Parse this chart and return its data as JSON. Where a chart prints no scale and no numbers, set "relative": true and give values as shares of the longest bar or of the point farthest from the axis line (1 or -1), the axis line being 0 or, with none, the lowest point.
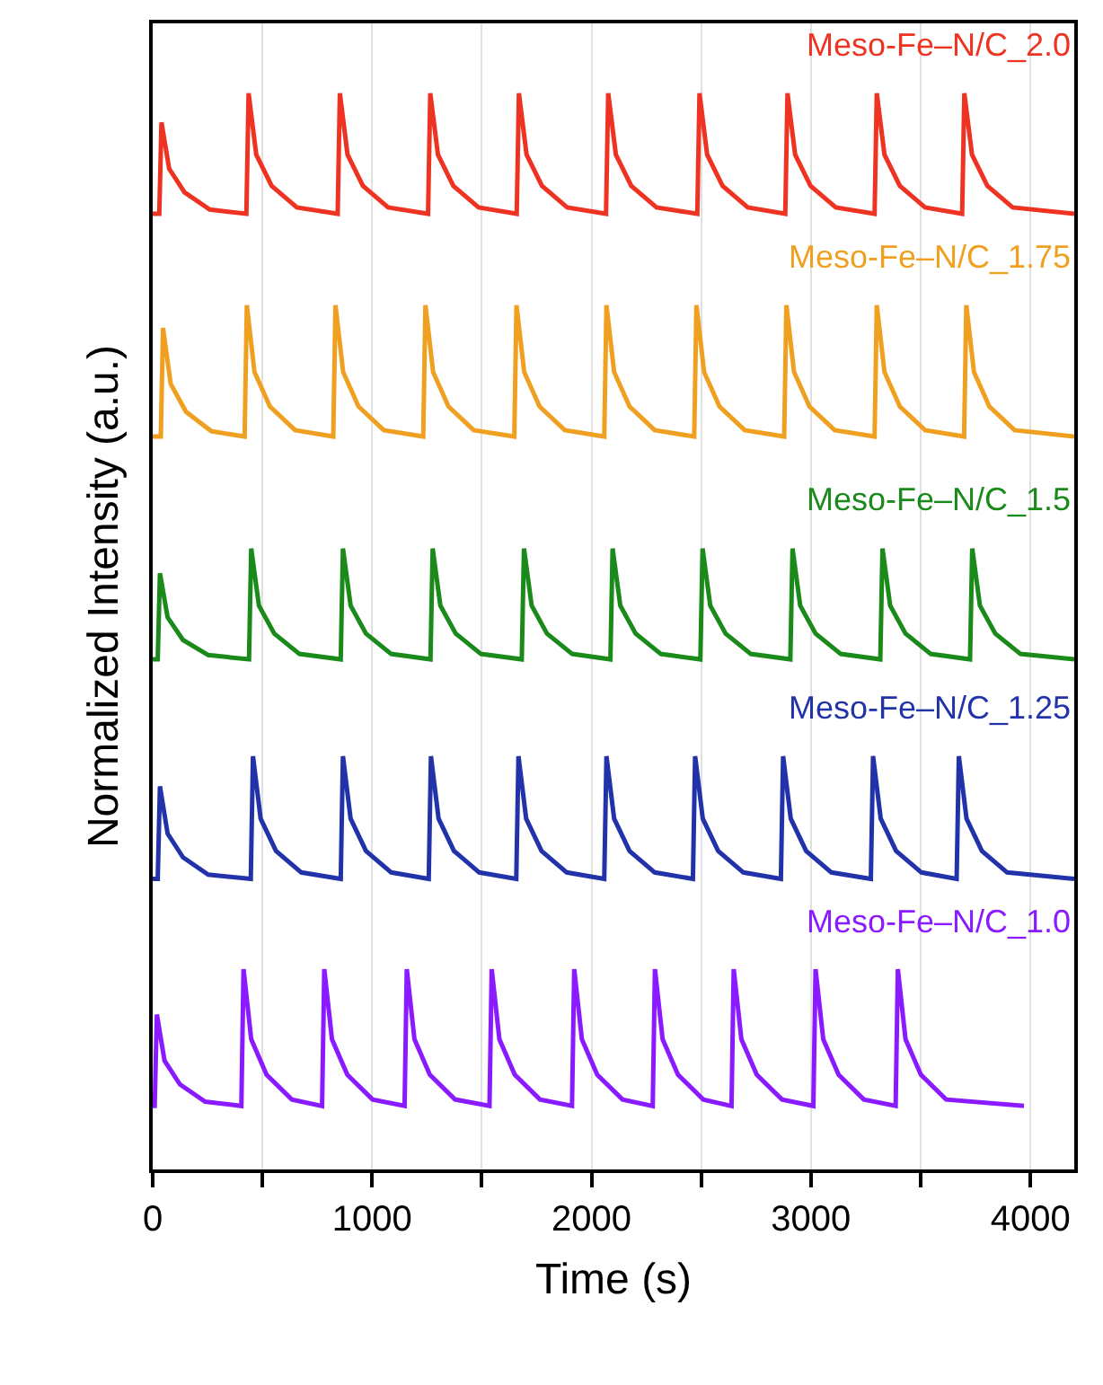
{
  "chart_data": {
    "type": "line",
    "relative": true,
    "xlabel": "Time (s)",
    "ylabel": "Normalized Intensity (a.u.)",
    "xlim": [
      0,
      4200
    ],
    "xticks": [
      0,
      {
        "value": 500,
        "label": null
      },
      1000,
      {
        "value": 1500,
        "label": null
      },
      2000,
      {
        "value": 2500,
        "label": null
      },
      3000,
      {
        "value": 3500,
        "label": null
      },
      4000
    ],
    "tick_labels": "x",
    "grid": "x",
    "legend": false,
    "marker": "none",
    "line_style": "solid",
    "series": [
      {
        "name": "Meso-Fe–N/C_2.0",
        "color": "#ee3322",
        "x": [
          0,
          30,
          40,
          75,
          145,
          260,
          427,
          437,
          472,
          542,
          657,
          843,
          853,
          888,
          958,
          1073,
          1255,
          1265,
          1300,
          1370,
          1485,
          1659,
          1669,
          1704,
          1774,
          1889,
          2066,
          2076,
          2111,
          2181,
          2296,
          2482,
          2492,
          2527,
          2597,
          2712,
          2883,
          2893,
          2928,
          2998,
          3113,
          3290,
          3300,
          3335,
          3405,
          3520,
          3689,
          3699,
          3734,
          3804,
          3919,
          4200
        ],
        "values": [
          0.888,
          0.888,
          0.973,
          0.93,
          0.908,
          0.892,
          0.888,
          1.0,
          0.943,
          0.914,
          0.894,
          0.888,
          1.0,
          0.943,
          0.914,
          0.894,
          0.888,
          1.0,
          0.943,
          0.914,
          0.894,
          0.888,
          1.0,
          0.943,
          0.914,
          0.894,
          0.888,
          1.0,
          0.943,
          0.914,
          0.894,
          0.888,
          1.0,
          0.943,
          0.914,
          0.894,
          0.888,
          1.0,
          0.943,
          0.914,
          0.894,
          0.888,
          1.0,
          0.943,
          0.914,
          0.894,
          0.888,
          1.0,
          0.943,
          0.914,
          0.894,
          0.888
        ]
      },
      {
        "name": "Meso-Fe–N/C_1.75",
        "color": "#f0a020",
        "x": [
          0,
          37,
          47,
          82,
          152,
          267,
          419,
          429,
          464,
          534,
          649,
          823,
          833,
          868,
          938,
          1053,
          1233,
          1243,
          1278,
          1348,
          1463,
          1648,
          1658,
          1693,
          1763,
          1878,
          2058,
          2068,
          2103,
          2173,
          2288,
          2468,
          2478,
          2513,
          2583,
          2698,
          2878,
          2888,
          2923,
          2993,
          3108,
          3290,
          3300,
          3335,
          3405,
          3520,
          3698,
          3708,
          3743,
          3813,
          3928,
          4200
        ],
        "values": [
          0.681,
          0.681,
          0.782,
          0.73,
          0.704,
          0.686,
          0.681,
          0.803,
          0.741,
          0.709,
          0.687,
          0.681,
          0.803,
          0.741,
          0.709,
          0.687,
          0.681,
          0.803,
          0.741,
          0.709,
          0.687,
          0.681,
          0.803,
          0.741,
          0.709,
          0.687,
          0.681,
          0.803,
          0.741,
          0.709,
          0.687,
          0.681,
          0.803,
          0.741,
          0.709,
          0.687,
          0.681,
          0.803,
          0.741,
          0.709,
          0.687,
          0.681,
          0.803,
          0.741,
          0.709,
          0.687,
          0.681,
          0.803,
          0.741,
          0.709,
          0.687,
          0.681
        ]
      },
      {
        "name": "Meso-Fe–N/C_1.5",
        "color": "#1a8a1a",
        "x": [
          0,
          23,
          33,
          68,
          138,
          253,
          439,
          449,
          484,
          554,
          669,
          857,
          867,
          902,
          972,
          1087,
          1266,
          1276,
          1311,
          1381,
          1496,
          1682,
          1692,
          1727,
          1797,
          1912,
          2086,
          2096,
          2131,
          2201,
          2316,
          2496,
          2506,
          2541,
          2611,
          2726,
          2906,
          2916,
          2951,
          3021,
          3136,
          3316,
          3326,
          3361,
          3431,
          3546,
          3725,
          3735,
          3770,
          3840,
          3955,
          4200
        ],
        "values": [
          0.474,
          0.474,
          0.554,
          0.513,
          0.492,
          0.478,
          0.474,
          0.577,
          0.524,
          0.498,
          0.479,
          0.474,
          0.577,
          0.524,
          0.498,
          0.479,
          0.474,
          0.577,
          0.524,
          0.498,
          0.479,
          0.474,
          0.577,
          0.524,
          0.498,
          0.479,
          0.474,
          0.577,
          0.524,
          0.498,
          0.479,
          0.474,
          0.577,
          0.524,
          0.498,
          0.479,
          0.474,
          0.577,
          0.524,
          0.498,
          0.479,
          0.474,
          0.577,
          0.524,
          0.498,
          0.479,
          0.474,
          0.577,
          0.524,
          0.498,
          0.479,
          0.474
        ]
      },
      {
        "name": "Meso-Fe–N/C_1.25",
        "color": "#2233aa",
        "x": [
          0,
          23,
          33,
          68,
          138,
          253,
          447,
          457,
          492,
          562,
          677,
          857,
          867,
          902,
          972,
          1087,
          1258,
          1268,
          1303,
          1373,
          1488,
          1657,
          1667,
          1702,
          1772,
          1887,
          2058,
          2068,
          2103,
          2173,
          2288,
          2462,
          2472,
          2507,
          2577,
          2692,
          2863,
          2873,
          2908,
          2978,
          3093,
          3273,
          3283,
          3318,
          3388,
          3503,
          3664,
          3674,
          3709,
          3779,
          3894,
          4200
        ],
        "values": [
          0.27,
          0.27,
          0.356,
          0.312,
          0.29,
          0.274,
          0.27,
          0.384,
          0.326,
          0.296,
          0.276,
          0.27,
          0.384,
          0.326,
          0.296,
          0.276,
          0.27,
          0.384,
          0.326,
          0.296,
          0.276,
          0.27,
          0.384,
          0.326,
          0.296,
          0.276,
          0.27,
          0.384,
          0.326,
          0.296,
          0.276,
          0.27,
          0.384,
          0.326,
          0.296,
          0.276,
          0.27,
          0.384,
          0.326,
          0.296,
          0.276,
          0.27,
          0.384,
          0.326,
          0.296,
          0.276,
          0.27,
          0.384,
          0.326,
          0.296,
          0.276,
          0.27
        ]
      },
      {
        "name": "Meso-Fe–N/C_1.0",
        "color": "#8a1aff",
        "x": [
          0,
          9,
          19,
          54,
          124,
          239,
          404,
          414,
          449,
          519,
          634,
          772,
          782,
          817,
          887,
          1002,
          1148,
          1158,
          1193,
          1263,
          1378,
          1535,
          1545,
          1580,
          1650,
          1765,
          1911,
          1921,
          1956,
          2026,
          2141,
          2279,
          2289,
          2324,
          2394,
          2509,
          2638,
          2648,
          2683,
          2753,
          2868,
          3011,
          3021,
          3056,
          3126,
          3241,
          3386,
          3396,
          3431,
          3501,
          3616,
          3971
        ],
        "values": [
          0.059,
          0.059,
          0.144,
          0.101,
          0.079,
          0.063,
          0.059,
          0.186,
          0.121,
          0.088,
          0.065,
          0.059,
          0.186,
          0.121,
          0.088,
          0.065,
          0.059,
          0.186,
          0.121,
          0.088,
          0.065,
          0.059,
          0.186,
          0.121,
          0.088,
          0.065,
          0.059,
          0.186,
          0.121,
          0.088,
          0.065,
          0.059,
          0.186,
          0.121,
          0.088,
          0.065,
          0.059,
          0.186,
          0.121,
          0.088,
          0.065,
          0.059,
          0.186,
          0.121,
          0.088,
          0.065,
          0.059,
          0.186,
          0.121,
          0.088,
          0.065,
          0.059
        ]
      }
    ]
  }
}
